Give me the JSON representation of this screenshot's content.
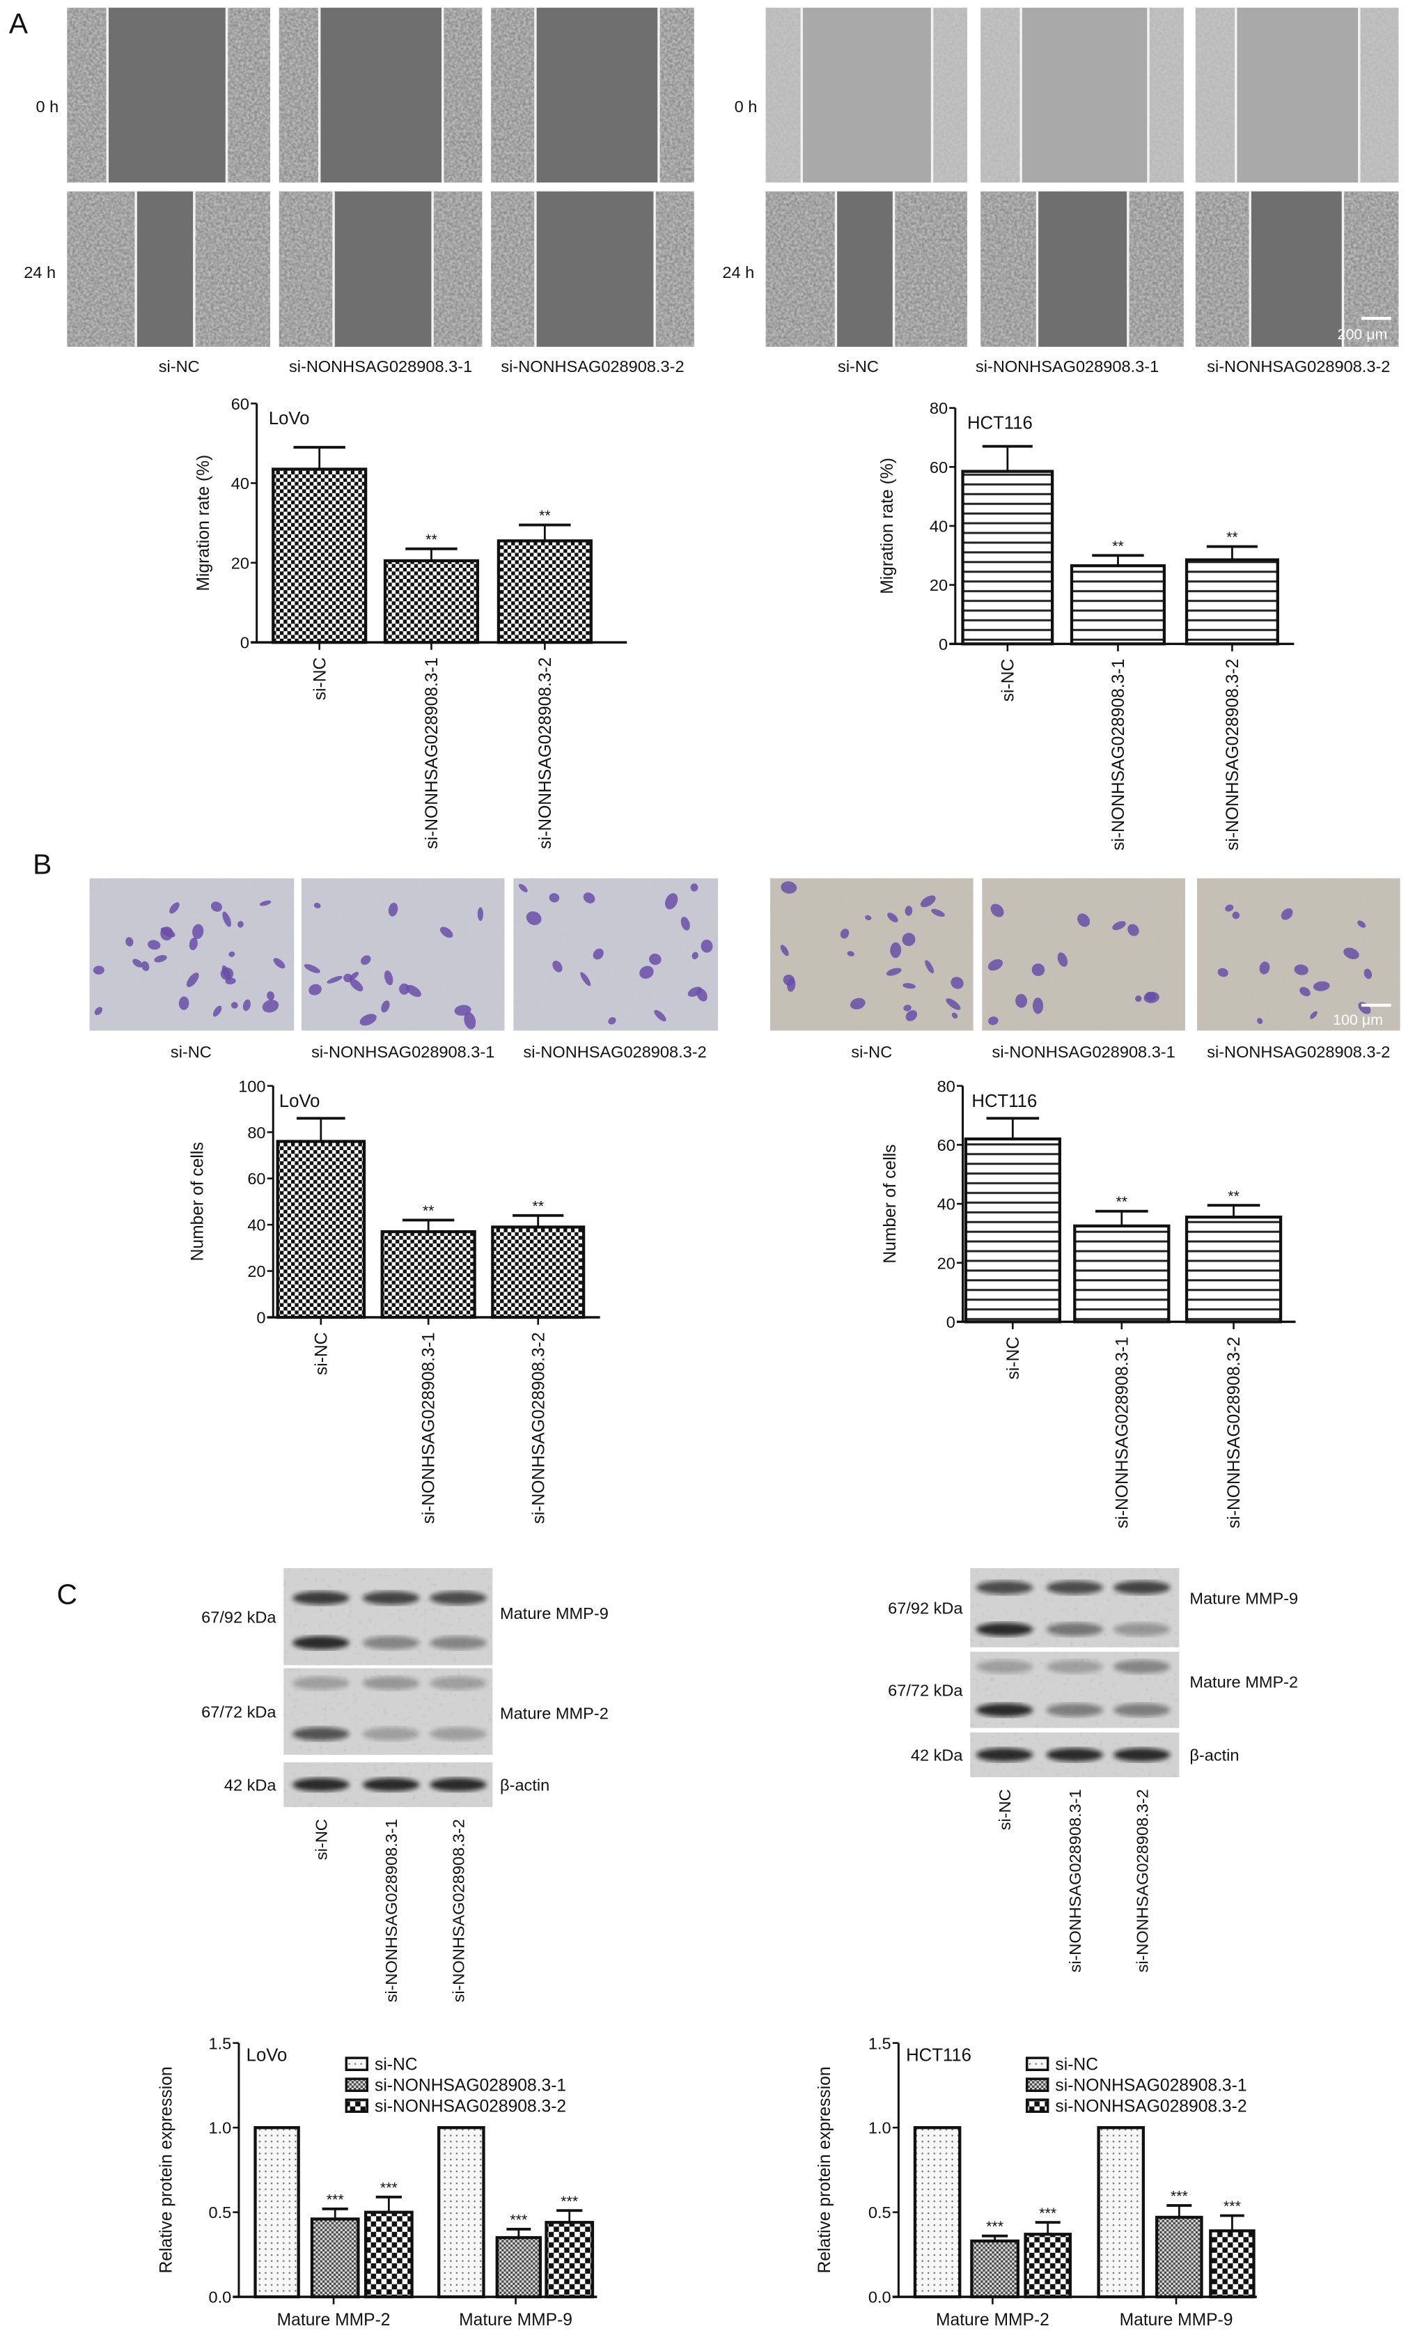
{
  "panel_labels": {
    "a": "A",
    "b": "B",
    "c": "C"
  },
  "panel_a": {
    "row_labels": [
      "0 h",
      "24 h"
    ],
    "left_captions": [
      "si-NC",
      "si-NONHSAG028908.3-1",
      "si-NONHSAG028908.3-2"
    ],
    "right_captions": [
      "si-NC",
      "si-NONHSAG028908.3-1",
      "si-NONHSAG028908.3-2"
    ],
    "scale_bar": "200 μm"
  },
  "panel_b": {
    "left_captions": [
      "si-NC",
      "si-NONHSAG028908.3-1",
      "si-NONHSAG028908.3-2"
    ],
    "right_captions": [
      "si-NC",
      "si-NONHSAG028908.3-1",
      "si-NONHSAG028908.3-2"
    ],
    "scale_bar": "100 μm",
    "stain_color": "#6a4fa8"
  },
  "panel_c_blots": [
    {
      "cell_line": "LoVo",
      "size_labels": [
        "67/92 kDa",
        "67/72 kDa",
        "42 kDa"
      ],
      "band_labels": [
        "Mature MMP-9",
        "Mature MMP-2",
        "β-actin"
      ],
      "lanes": [
        "si-NC",
        "si-NONHSAG028908.3-1",
        "si-NONHSAG028908.3-2"
      ]
    },
    {
      "cell_line": "HCT116",
      "size_labels": [
        "67/92 kDa",
        "67/72 kDa",
        "42 kDa"
      ],
      "band_labels": [
        "Mature MMP-9",
        "Mature MMP-2",
        "β-actin"
      ],
      "lanes": [
        "si-NC",
        "si-NONHSAG028908.3-1",
        "si-NONHSAG028908.3-2"
      ]
    }
  ],
  "chart_data": [
    {
      "type": "bar",
      "panel": "A",
      "annotation": "LoVo",
      "ylabel": "Migration rate (%)",
      "ylim": [
        0,
        60
      ],
      "yticks": [
        "0",
        "20",
        "40",
        "60"
      ],
      "categories": [
        "si-NC",
        "si-NONHSAG028908.3-1",
        "si-NONHSAG028908.3-2"
      ],
      "values": [
        43.5,
        20.5,
        25.5
      ],
      "errors": [
        5.5,
        3,
        4
      ],
      "significance": [
        "",
        "**",
        "**"
      ],
      "pattern": "checkerboard"
    },
    {
      "type": "bar",
      "panel": "A",
      "annotation": "HCT116",
      "ylabel": "Migration rate (%)",
      "ylim": [
        0,
        80
      ],
      "yticks": [
        "0",
        "20",
        "40",
        "60",
        "80"
      ],
      "categories": [
        "si-NC",
        "si-NONHSAG028908.3-1",
        "si-NONHSAG028908.3-2"
      ],
      "values": [
        58.5,
        26.5,
        28.5
      ],
      "errors": [
        8.5,
        3.5,
        4.5
      ],
      "significance": [
        "",
        "**",
        "**"
      ],
      "pattern": "horizontal-lines"
    },
    {
      "type": "bar",
      "panel": "B",
      "annotation": "LoVo",
      "ylabel": "Number of cells",
      "ylim": [
        0,
        100
      ],
      "yticks": [
        "0",
        "20",
        "40",
        "60",
        "80",
        "100"
      ],
      "categories": [
        "si-NC",
        "si-NONHSAG028908.3-1",
        "si-NONHSAG028908.3-2"
      ],
      "values": [
        76,
        37,
        39
      ],
      "errors": [
        10,
        5,
        5
      ],
      "significance": [
        "",
        "**",
        "**"
      ],
      "pattern": "checkerboard"
    },
    {
      "type": "bar",
      "panel": "B",
      "annotation": "HCT116",
      "ylabel": "Number of cells",
      "ylim": [
        0,
        80
      ],
      "yticks": [
        "0",
        "20",
        "40",
        "60",
        "80"
      ],
      "categories": [
        "si-NC",
        "si-NONHSAG028908.3-1",
        "si-NONHSAG028908.3-2"
      ],
      "values": [
        62,
        32.5,
        35.5
      ],
      "errors": [
        7,
        5,
        4
      ],
      "significance": [
        "",
        "**",
        "**"
      ],
      "pattern": "horizontal-lines"
    },
    {
      "type": "bar",
      "panel": "C",
      "annotation": "LoVo",
      "ylabel": "Relative protein expression",
      "ylim": [
        0,
        1.5
      ],
      "yticks": [
        "0.0",
        "0.5",
        "1.0",
        "1.5"
      ],
      "categories": [
        "Mature MMP-2",
        "Mature MMP-9"
      ],
      "legend": "top",
      "series": [
        {
          "name": "si-NC",
          "values": [
            1.0,
            1.0
          ],
          "errors": [
            0,
            0
          ],
          "significance": [
            "",
            ""
          ],
          "pattern": "dots"
        },
        {
          "name": "si-NONHSAG028908.3-1",
          "values": [
            0.46,
            0.35
          ],
          "errors": [
            0.06,
            0.05
          ],
          "significance": [
            "***",
            "***"
          ],
          "pattern": "fine-check"
        },
        {
          "name": "si-NONHSAG028908.3-2",
          "values": [
            0.5,
            0.44
          ],
          "errors": [
            0.09,
            0.07
          ],
          "significance": [
            "***",
            "***"
          ],
          "pattern": "coarse-check"
        }
      ]
    },
    {
      "type": "bar",
      "panel": "C",
      "annotation": "HCT116",
      "ylabel": "Relative protein expression",
      "ylim": [
        0,
        1.5
      ],
      "yticks": [
        "0.0",
        "0.5",
        "1.0",
        "1.5"
      ],
      "categories": [
        "Mature MMP-2",
        "Mature MMP-9"
      ],
      "legend": "top",
      "series": [
        {
          "name": "si-NC",
          "values": [
            1.0,
            1.0
          ],
          "errors": [
            0,
            0
          ],
          "significance": [
            "",
            ""
          ],
          "pattern": "dots"
        },
        {
          "name": "si-NONHSAG028908.3-1",
          "values": [
            0.33,
            0.47
          ],
          "errors": [
            0.03,
            0.07
          ],
          "significance": [
            "***",
            "***"
          ],
          "pattern": "fine-check"
        },
        {
          "name": "si-NONHSAG028908.3-2",
          "values": [
            0.37,
            0.39
          ],
          "errors": [
            0.07,
            0.09
          ],
          "significance": [
            "***",
            "***"
          ],
          "pattern": "coarse-check"
        }
      ]
    }
  ]
}
